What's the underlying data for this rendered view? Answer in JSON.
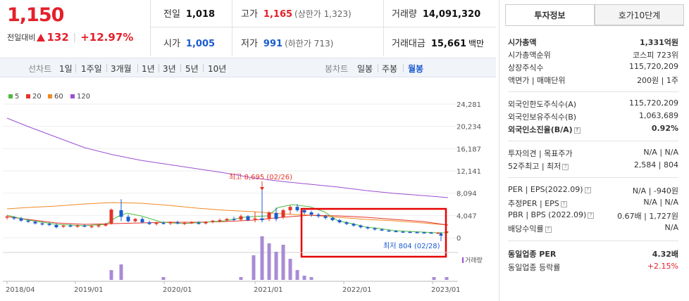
{
  "price": {
    "current": "1,150",
    "change_label": "전일대비",
    "change_amount": "132",
    "change_pct": "+12.97%"
  },
  "quote": {
    "prev": {
      "label": "전일",
      "value": "1,018"
    },
    "high": {
      "label": "고가",
      "value": "1,165",
      "sub": "(상한가 1,323)"
    },
    "volume": {
      "label": "거래량",
      "value": "14,091,320"
    },
    "open": {
      "label": "시가",
      "value": "1,005"
    },
    "low": {
      "label": "저가",
      "value": "991",
      "sub": "(하한가 713)"
    },
    "amount": {
      "label": "거래대금",
      "value": "15,661",
      "unit": "백만"
    }
  },
  "toolbar": {
    "line_label": "선차트",
    "periods": [
      "1일",
      "1주일",
      "3개월",
      "1년",
      "3년",
      "5년",
      "10년"
    ],
    "candle_label": "봉차트",
    "candle_options": [
      "일봉",
      "주봉",
      "월봉"
    ],
    "active_candle": "월봉"
  },
  "chart": {
    "legend": [
      {
        "label": "5",
        "color": "#4cbb3c"
      },
      {
        "label": "20",
        "color": "#e4342a"
      },
      {
        "label": "60",
        "color": "#f08a24"
      },
      {
        "label": "120",
        "color": "#9b4fd1"
      }
    ],
    "y_ticks": [
      "24,281",
      "20,234",
      "16,187",
      "12,141",
      "8,094",
      "4,047",
      "0"
    ],
    "x_ticks": [
      "2018/04",
      "2019/01",
      "2020/01",
      "2021/01",
      "2022/01",
      "2023/01"
    ],
    "high_annotation": "최고 8,695 (02/26)",
    "low_annotation": "최저 804 (02/28)",
    "volume_label": "거래량"
  },
  "chart_data": {
    "type": "candlestick",
    "interval": "monthly",
    "y_ticks": [
      24281,
      20234,
      16187,
      12141,
      8094,
      4047,
      0
    ],
    "x_ticks": [
      "2018/04",
      "2019/01",
      "2020/01",
      "2021/01",
      "2022/01",
      "2023/01"
    ],
    "annotations": [
      {
        "label": "최고",
        "value": 8695,
        "date": "02/26"
      },
      {
        "label": "최저",
        "value": 804,
        "date": "02/28"
      }
    ],
    "series": [
      {
        "name": "5",
        "color": "#4cbb3c"
      },
      {
        "name": "20",
        "color": "#e4342a"
      },
      {
        "name": "60",
        "color": "#f08a24"
      },
      {
        "name": "120",
        "color": "#9b4fd1"
      }
    ]
  },
  "panel": {
    "tabs": [
      "투자정보",
      "호가10단계"
    ],
    "rows1": [
      {
        "label": "시가총액",
        "value": "1,331억원",
        "bold": true
      },
      {
        "label": "시가총액순위",
        "value": "코스피 723위"
      },
      {
        "label": "상장주식수",
        "value": "115,720,209"
      },
      {
        "label": "액면가 | 매매단위",
        "value": "200원 | 1주"
      }
    ],
    "rows2": [
      {
        "label": "외국인한도주식수(A)",
        "value": "115,720,209"
      },
      {
        "label": "외국인보유주식수(B)",
        "value": "1,063,689"
      },
      {
        "label": "외국인소진율(B/A)",
        "value": "0.92%",
        "bold": true
      }
    ],
    "rows3": [
      {
        "label": "투자의견 | 목표주가",
        "value": "N/A | N/A"
      },
      {
        "label": "52주최고 | 최저",
        "value": "2,584 | 804"
      }
    ],
    "rows4": [
      {
        "label": "PER | EPS(2022.09)",
        "value": "N/A | -940원"
      },
      {
        "label": "추정PER | EPS",
        "value": "N/A | N/A"
      },
      {
        "label": "PBR | BPS (2022.09)",
        "value": "0.67배 | 1,727원"
      },
      {
        "label": "배당수익률",
        "value": "N/A"
      }
    ],
    "rows5": [
      {
        "label": "동일업종 PER",
        "value": "4.32배",
        "bold": true
      },
      {
        "label": "동일업종 등락률",
        "value": "+2.15%",
        "red": true
      }
    ]
  }
}
